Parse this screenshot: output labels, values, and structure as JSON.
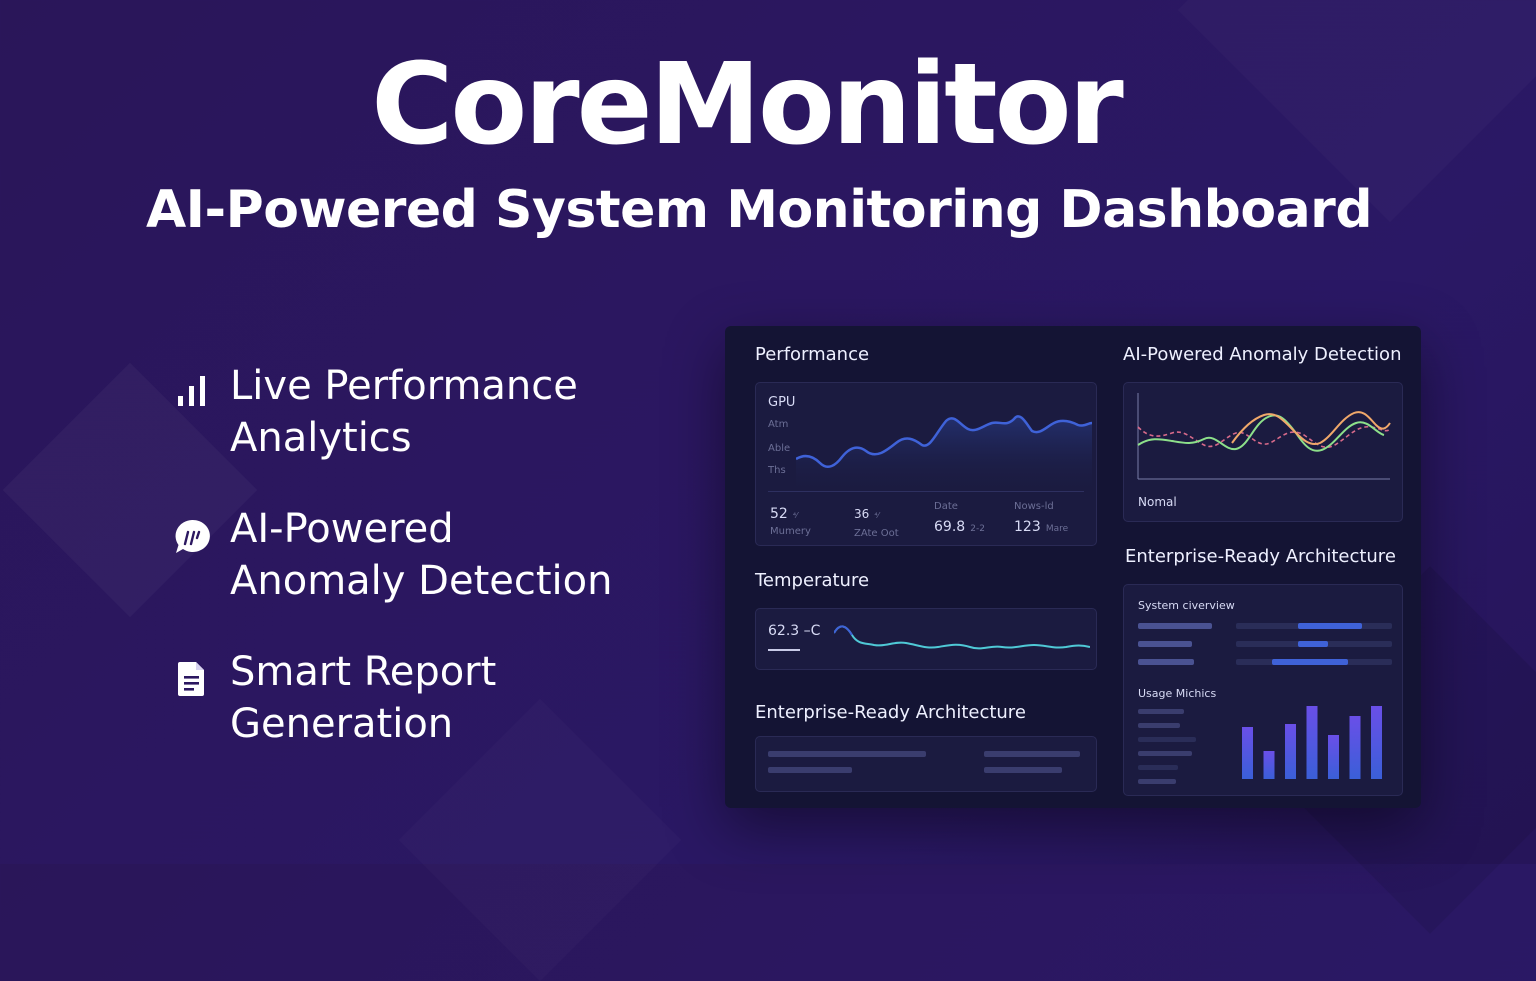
{
  "hero": {
    "title": "CoreMonitor",
    "subtitle": "AI-Powered System Monitoring Dashboard"
  },
  "features": [
    {
      "icon": "signal-bars-icon",
      "line1": "Live Performance",
      "line2": "Analytics"
    },
    {
      "icon": "ai-chat-icon",
      "line1": "AI-Powered",
      "line2": "Anomaly Detection"
    },
    {
      "icon": "document-icon",
      "line1": "Smart Report",
      "line2": "Generation"
    }
  ],
  "dashboard": {
    "performance": {
      "title": "Performance",
      "chart_label": "GPU",
      "y_labels": [
        "Atm",
        "Able",
        "Ths"
      ],
      "stats": [
        {
          "value": "52",
          "suffix": "⁴⁄",
          "caption": "Mumery"
        },
        {
          "value": "36",
          "suffix": "⁴⁄",
          "caption": "ZAte Oot"
        },
        {
          "value": "69.8",
          "suffix": "2-2",
          "caption": "Date"
        },
        {
          "value": "123",
          "suffix": "Mare",
          "caption": "Nows-ld"
        }
      ]
    },
    "temperature": {
      "title": "Temperature",
      "value": "62.3 –C"
    },
    "enterprise_left": {
      "title": "Enterprise-Ready Architecture"
    },
    "anomaly": {
      "title": "AI-Powered Anomaly Detection",
      "status": "Nomal"
    },
    "enterprise_right": {
      "title": "Enterprise-Ready Architecture",
      "overview_label": "System civerview",
      "usage_label": "Usage Michics"
    }
  },
  "colors": {
    "accent_blue": "#3f62d8",
    "line_green": "#8de08a",
    "line_orange": "#f0a86a",
    "line_pink": "#d86a8a",
    "temp_line": "#4fc9d6",
    "bar_purple": "#5b4bd9"
  },
  "chart_data": [
    {
      "type": "bar",
      "title": "Usage Michics",
      "values": [
        52,
        28,
        55,
        73,
        44,
        63,
        73
      ]
    }
  ]
}
